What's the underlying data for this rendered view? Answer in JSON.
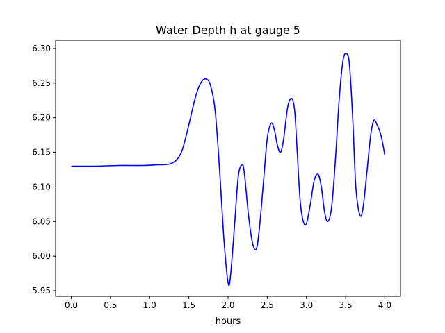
{
  "chart_data": {
    "type": "line",
    "title": "Water Depth h at gauge 5",
    "xlabel": "hours",
    "ylabel": "",
    "xlim": [
      -0.2,
      4.2
    ],
    "ylim": [
      5.942,
      6.312
    ],
    "xticks": [
      0.0,
      0.5,
      1.0,
      1.5,
      2.0,
      2.5,
      3.0,
      3.5,
      4.0
    ],
    "xtick_labels": [
      "0.0",
      "0.5",
      "1.0",
      "1.5",
      "2.0",
      "2.5",
      "3.0",
      "3.5",
      "4.0"
    ],
    "yticks": [
      5.95,
      6.0,
      6.05,
      6.1,
      6.15,
      6.2,
      6.25,
      6.3
    ],
    "ytick_labels": [
      "5.95",
      "6.00",
      "6.05",
      "6.10",
      "6.15",
      "6.20",
      "6.25",
      "6.30"
    ],
    "grid": false,
    "series": [
      {
        "color": "#0000ff",
        "x": [
          0.0,
          0.3,
          0.6,
          0.9,
          1.1,
          1.25,
          1.35,
          1.42,
          1.5,
          1.58,
          1.65,
          1.72,
          1.78,
          1.84,
          1.9,
          1.95,
          2.0,
          2.03,
          2.08,
          2.13,
          2.18,
          2.21,
          2.26,
          2.31,
          2.36,
          2.4,
          2.45,
          2.5,
          2.55,
          2.59,
          2.63,
          2.67,
          2.71,
          2.76,
          2.81,
          2.85,
          2.88,
          2.92,
          2.96,
          3.0,
          3.05,
          3.1,
          3.15,
          3.19,
          3.23,
          3.27,
          3.32,
          3.37,
          3.42,
          3.47,
          3.52,
          3.55,
          3.59,
          3.63,
          3.68,
          3.72,
          3.77,
          3.82,
          3.86,
          3.9,
          3.95,
          4.0
        ],
        "values": [
          6.13,
          6.13,
          6.131,
          6.131,
          6.132,
          6.133,
          6.14,
          6.155,
          6.19,
          6.228,
          6.25,
          6.256,
          6.245,
          6.205,
          6.11,
          6.02,
          5.962,
          5.97,
          6.04,
          6.115,
          6.132,
          6.118,
          6.06,
          6.02,
          6.01,
          6.04,
          6.105,
          6.17,
          6.192,
          6.183,
          6.16,
          6.15,
          6.17,
          6.215,
          6.228,
          6.21,
          6.155,
          6.08,
          6.05,
          6.047,
          6.075,
          6.11,
          6.118,
          6.1,
          6.065,
          6.05,
          6.07,
          6.14,
          6.23,
          6.285,
          6.292,
          6.275,
          6.2,
          6.1,
          6.06,
          6.068,
          6.12,
          6.175,
          6.196,
          6.19,
          6.175,
          6.146
        ]
      }
    ]
  }
}
